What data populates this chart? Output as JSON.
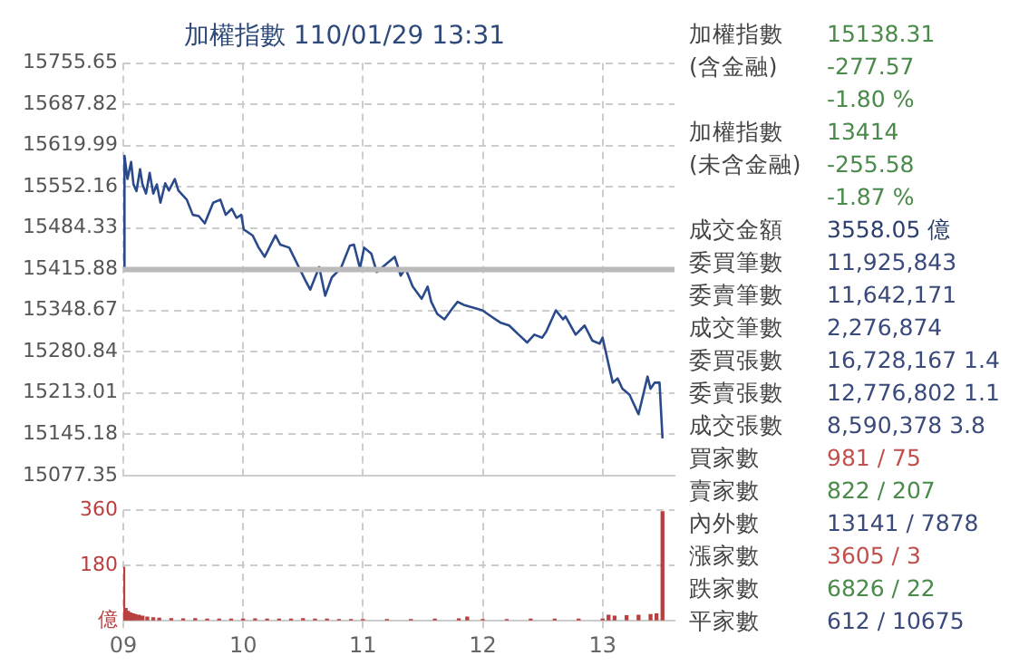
{
  "chart_data": [
    {
      "type": "line",
      "title": "加權指數 110/01/29 13:31",
      "tick_labels": "y",
      "grid": true,
      "legend": false,
      "marker": "none",
      "line_style": "solid",
      "xlim": [
        9,
        13.6
      ],
      "xticks": [
        {
          "value": 9,
          "label": null
        },
        {
          "value": 10,
          "label": null
        },
        {
          "value": 11,
          "label": null
        },
        {
          "value": 12,
          "label": null
        },
        {
          "value": 13,
          "label": null
        }
      ],
      "ylim": [
        15077.35,
        15755.65
      ],
      "yticks": [
        15077.35,
        15145.18,
        15213.01,
        15280.84,
        15348.67,
        15415.88,
        15484.33,
        15552.16,
        15619.99,
        15687.82,
        15755.65
      ],
      "ref_lines": [
        {
          "axis": "y",
          "value": 15415.88,
          "color": "#bbbbbb"
        }
      ],
      "series": [
        {
          "color": "#2b4a8b",
          "x": [
            9.0,
            9.01,
            9.035,
            9.065,
            9.085,
            9.11,
            9.14,
            9.16,
            9.19,
            9.22,
            9.25,
            9.28,
            9.31,
            9.35,
            9.38,
            9.43,
            9.46,
            9.53,
            9.58,
            9.63,
            9.68,
            9.75,
            9.81,
            9.855,
            9.905,
            9.945,
            9.985,
            10.005,
            10.08,
            10.13,
            10.18,
            10.27,
            10.31,
            10.385,
            10.46,
            10.52,
            10.56,
            10.635,
            10.685,
            10.74,
            10.815,
            10.89,
            10.925,
            10.975,
            11.01,
            11.07,
            11.115,
            11.265,
            11.315,
            11.355,
            11.415,
            11.49,
            11.54,
            11.57,
            11.62,
            11.68,
            11.75,
            11.79,
            11.84,
            11.996,
            12.07,
            12.145,
            12.22,
            12.3,
            12.37,
            12.43,
            12.495,
            12.53,
            12.61,
            12.67,
            12.69,
            12.775,
            12.85,
            12.915,
            12.975,
            13.0,
            13.05,
            13.085,
            13.125,
            13.165,
            13.225,
            13.3,
            13.375,
            13.4,
            13.435,
            13.475,
            13.5
          ],
          "values": [
            15415.88,
            15603,
            15565,
            15593,
            15556,
            15545,
            15581,
            15556,
            15541,
            15575,
            15541,
            15556,
            15526,
            15558,
            15546,
            15565,
            15546,
            15531,
            15506,
            15504,
            15492,
            15526,
            15531,
            15506,
            15516,
            15501,
            15506,
            15482,
            15472,
            15452,
            15437,
            15472,
            15457,
            15452,
            15422,
            15398,
            15383,
            15420,
            15373,
            15403,
            15418,
            15455,
            15457,
            15418,
            15452,
            15442,
            15412,
            15437,
            15406,
            15418,
            15388,
            15368,
            15388,
            15363,
            15343,
            15334,
            15353,
            15363,
            15358,
            15349,
            15339,
            15329,
            15324,
            15309,
            15296,
            15309,
            15304,
            15314,
            15349,
            15334,
            15339,
            15309,
            15324,
            15299,
            15294,
            15304,
            15260,
            15230,
            15237,
            15220,
            15210,
            15178,
            15240,
            15220,
            15230,
            15230,
            15138.31
          ]
        }
      ]
    },
    {
      "type": "bar",
      "grid": true,
      "legend": false,
      "xlim": [
        9,
        13.6
      ],
      "xticks": [
        {
          "value": 9,
          "label": "09"
        },
        {
          "value": 10,
          "label": "10"
        },
        {
          "value": 11,
          "label": "11"
        },
        {
          "value": 12,
          "label": "12"
        },
        {
          "value": 13,
          "label": "13"
        }
      ],
      "ylim": [
        0,
        360
      ],
      "yticks": [
        {
          "value": 0,
          "label": "億"
        },
        180,
        360
      ],
      "series": [
        {
          "color": "#b94040",
          "x": [
            9.0,
            9.02,
            9.04,
            9.06,
            9.08,
            9.1,
            9.13,
            9.16,
            9.2,
            9.25,
            9.3,
            9.4,
            9.5,
            9.6,
            9.7,
            9.8,
            9.9,
            10.0,
            10.1,
            10.2,
            10.3,
            10.4,
            10.5,
            10.6,
            10.7,
            10.8,
            10.9,
            11.0,
            11.2,
            11.4,
            11.6,
            11.8,
            11.87,
            12.0,
            12.2,
            12.4,
            12.6,
            12.8,
            13.0,
            13.05,
            13.1,
            13.2,
            13.3,
            13.4,
            13.45,
            13.5
          ],
          "values": [
            174,
            40,
            30,
            25,
            22,
            20,
            18,
            15,
            12,
            10,
            8,
            7,
            6,
            7,
            5,
            5,
            5,
            5,
            6,
            5,
            5,
            5,
            7,
            5,
            5,
            4,
            4,
            4,
            4,
            4,
            5,
            6,
            12,
            4,
            4,
            5,
            5,
            5,
            5,
            18,
            15,
            16,
            18,
            20,
            22,
            355
          ]
        }
      ]
    },
    {
      "type": "other",
      "categories": [
        "加權指數",
        "(含金融)",
        null,
        "加權指數",
        "(未含金融)",
        null,
        "成交金額",
        "委買筆數",
        "委賣筆數",
        "成交筆數",
        "委買張數",
        "委賣張數",
        "成交張數",
        "買家數",
        "賣家數",
        "內外數",
        "漲家數",
        "跌家數",
        "平家數"
      ],
      "value_labels": [
        "15138.31",
        "-277.57",
        "-1.80 %",
        "13414",
        "-255.58",
        "-1.87 %",
        "3558.05 億",
        "11,925,843",
        "11,642,171",
        "2,276,874",
        "16,728,167 1.4",
        "12,776,802 1.1",
        "8,590,378 3.8",
        "981 / 75",
        "822 / 207",
        "13141 / 7878",
        "3605 / 3",
        "6826 / 22",
        "612 / 10675"
      ],
      "colors": [
        "#4a8a4a",
        "#4a8a4a",
        "#4a8a4a",
        "#4a8a4a",
        "#4a8a4a",
        "#4a8a4a",
        "#2a3f6e",
        "#3a4a7a",
        "#3a4a7a",
        "#3a4a7a",
        "#3a4a7a",
        "#3a4a7a",
        "#3a4a7a",
        "#c0504d",
        "#4a8a4a",
        "#3a4a7a",
        "#c0504d",
        "#4a8a4a",
        "#3a4a7a"
      ]
    }
  ]
}
